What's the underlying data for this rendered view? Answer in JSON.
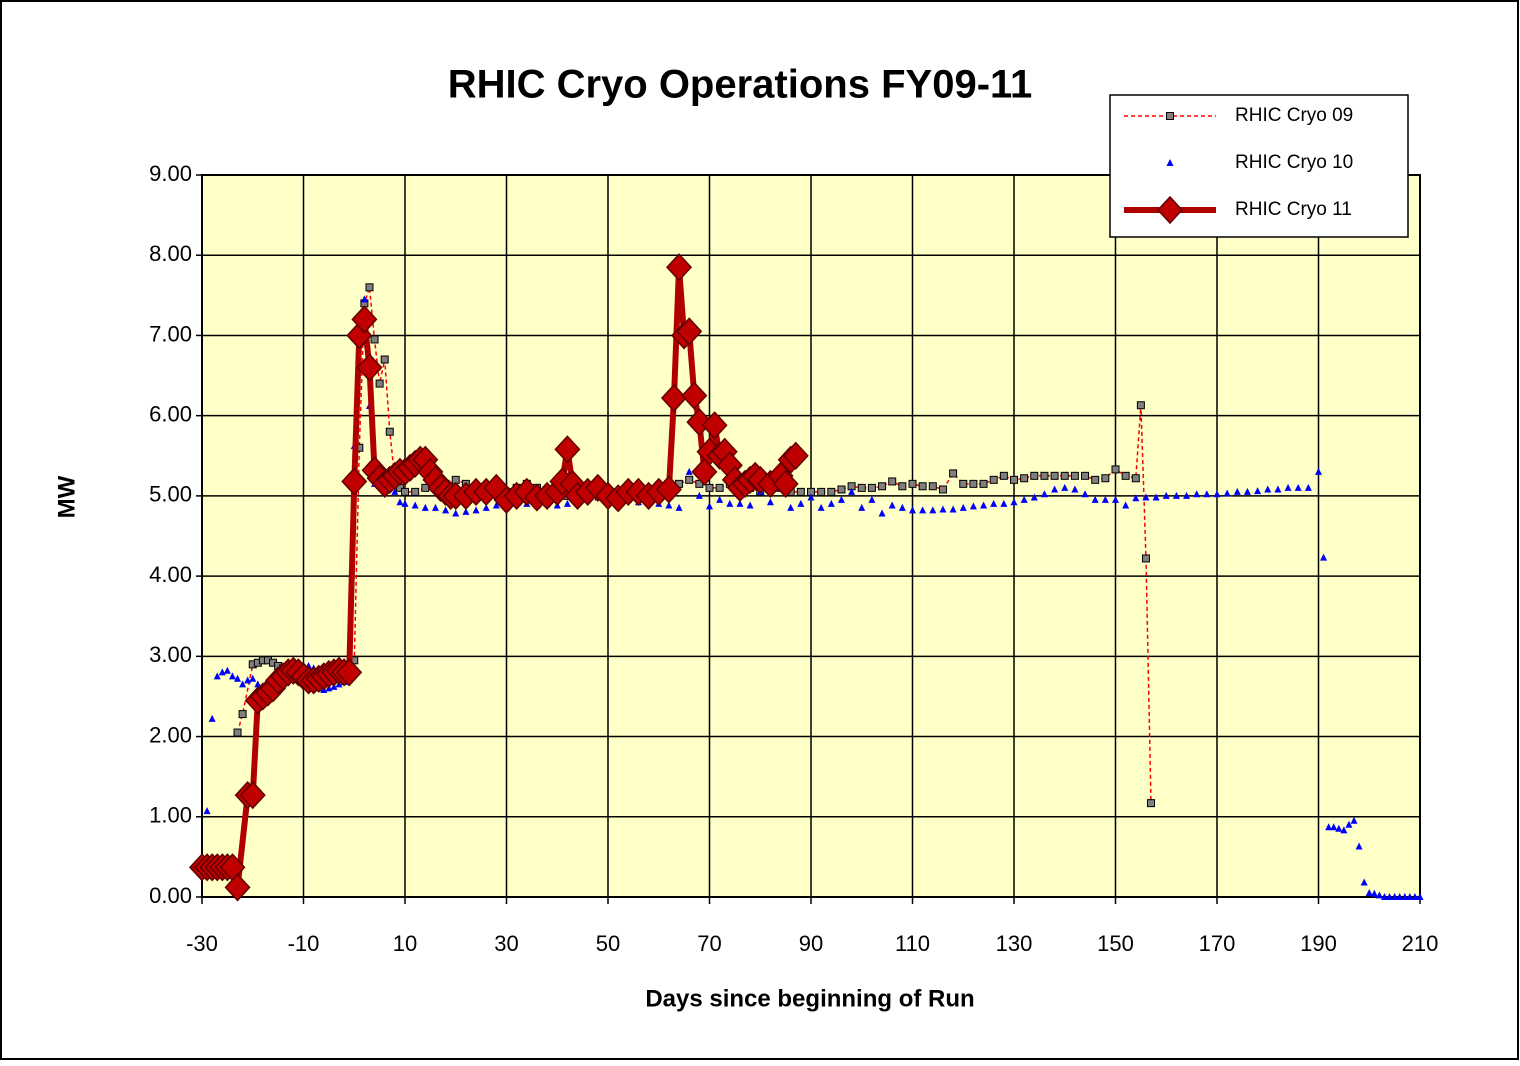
{
  "chart_data": {
    "type": "line",
    "title": "RHIC Cryo Operations FY09-11",
    "x_label": "Days since beginning of Run",
    "y_label": "MW",
    "xlim": [
      -30,
      210
    ],
    "xticks": [
      -30,
      -10,
      10,
      30,
      50,
      70,
      90,
      110,
      130,
      150,
      170,
      190,
      210
    ],
    "ylim": [
      0,
      9
    ],
    "yticks": [
      {
        "value": 0,
        "label": "0.00"
      },
      {
        "value": 1,
        "label": "1.00"
      },
      {
        "value": 2,
        "label": "2.00"
      },
      {
        "value": 3,
        "label": "3.00"
      },
      {
        "value": 4,
        "label": "4.00"
      },
      {
        "value": 5,
        "label": "5.00"
      },
      {
        "value": 6,
        "label": "6.00"
      },
      {
        "value": 7,
        "label": "7.00"
      },
      {
        "value": 8,
        "label": "8.00"
      },
      {
        "value": 9,
        "label": "9.00"
      }
    ],
    "grid": true,
    "legend": "top-right",
    "background": "#ffffc8",
    "series": [
      {
        "name": "RHIC Cryo 09",
        "color": "#ff0000",
        "marker": "square",
        "marker_color": "#808080",
        "line": "dashed",
        "x": [
          -23,
          -22,
          -20,
          -19,
          -18,
          -17,
          -16,
          -15,
          -14,
          -13,
          -12,
          -11,
          -10,
          -9,
          -8,
          -7,
          -6,
          -5,
          -4,
          -3,
          -2,
          -1,
          0,
          1,
          2,
          3,
          4,
          5,
          6,
          7,
          8,
          9,
          10,
          12,
          14,
          16,
          18,
          20,
          22,
          24,
          26,
          28,
          30,
          32,
          34,
          36,
          38,
          40,
          42,
          44,
          46,
          48,
          50,
          52,
          54,
          56,
          58,
          60,
          62,
          64,
          66,
          68,
          70,
          72,
          74,
          76,
          78,
          80,
          82,
          84,
          86,
          88,
          90,
          92,
          94,
          96,
          98,
          100,
          102,
          104,
          106,
          108,
          110,
          112,
          114,
          116,
          118,
          120,
          122,
          124,
          126,
          128,
          130,
          132,
          134,
          136,
          138,
          140,
          142,
          144,
          146,
          148,
          150,
          152,
          154,
          155,
          156,
          157
        ],
        "values": [
          2.05,
          2.28,
          2.9,
          2.92,
          2.95,
          2.95,
          2.92,
          2.88,
          2.85,
          2.82,
          2.8,
          2.8,
          2.78,
          2.75,
          2.75,
          2.72,
          2.7,
          2.7,
          2.72,
          2.75,
          2.8,
          2.85,
          2.95,
          5.6,
          7.4,
          7.6,
          6.95,
          6.4,
          6.7,
          5.8,
          5.2,
          5.1,
          5.05,
          5.05,
          5.1,
          5.15,
          5.15,
          5.2,
          5.15,
          5.1,
          5.1,
          5.05,
          5.05,
          5.1,
          5.15,
          5.1,
          5.05,
          5.05,
          5.0,
          5.05,
          5.1,
          5.1,
          5.05,
          5.05,
          5.1,
          5.1,
          5.05,
          5.1,
          5.1,
          5.15,
          5.2,
          5.15,
          5.1,
          5.1,
          5.15,
          5.1,
          5.1,
          5.05,
          5.1,
          5.1,
          5.05,
          5.05,
          5.05,
          5.05,
          5.05,
          5.08,
          5.12,
          5.1,
          5.1,
          5.12,
          5.18,
          5.12,
          5.15,
          5.12,
          5.12,
          5.08,
          5.28,
          5.15,
          5.15,
          5.15,
          5.2,
          5.25,
          5.2,
          5.22,
          5.25,
          5.25,
          5.25,
          5.25,
          5.25,
          5.25,
          5.2,
          5.22,
          5.33,
          5.25,
          5.22,
          6.13,
          4.22,
          1.17
        ]
      },
      {
        "name": "RHIC Cryo 10",
        "color": "#0000ff",
        "marker": "triangle",
        "line": "none",
        "x": [
          -29,
          -28,
          -27,
          -26,
          -25,
          -24,
          -23,
          -22,
          -21,
          -20,
          -19,
          -18,
          -17,
          -16,
          -15,
          -14,
          -13,
          -12,
          -11,
          -10,
          -9,
          -8,
          -7,
          -6,
          -5,
          -4,
          -3,
          -2,
          -1,
          0,
          1,
          2,
          3,
          4,
          5,
          6,
          7,
          8,
          9,
          10,
          12,
          14,
          16,
          18,
          20,
          22,
          24,
          26,
          28,
          30,
          32,
          34,
          36,
          38,
          40,
          42,
          44,
          46,
          48,
          50,
          52,
          54,
          56,
          58,
          60,
          62,
          64,
          66,
          68,
          70,
          72,
          74,
          76,
          78,
          80,
          82,
          84,
          86,
          88,
          90,
          92,
          94,
          96,
          98,
          100,
          102,
          104,
          106,
          108,
          110,
          112,
          114,
          116,
          118,
          120,
          122,
          124,
          126,
          128,
          130,
          132,
          134,
          136,
          138,
          140,
          142,
          144,
          146,
          148,
          150,
          152,
          154,
          156,
          158,
          160,
          162,
          164,
          166,
          168,
          170,
          172,
          174,
          176,
          178,
          180,
          182,
          184,
          186,
          188,
          190,
          191,
          192,
          193,
          194,
          195,
          196,
          197,
          198,
          199,
          200,
          201,
          202,
          203,
          204,
          205,
          206,
          207,
          208,
          209,
          210
        ],
        "values": [
          1.07,
          2.22,
          2.75,
          2.8,
          2.82,
          2.75,
          2.72,
          2.65,
          2.7,
          2.72,
          2.65,
          2.6,
          2.62,
          2.65,
          2.7,
          2.72,
          2.75,
          2.78,
          2.8,
          2.85,
          2.88,
          2.85,
          2.6,
          2.58,
          2.6,
          2.62,
          2.65,
          2.68,
          2.7,
          5.62,
          7.05,
          7.45,
          6.12,
          5.15,
          5.2,
          5.3,
          5.15,
          5.05,
          4.92,
          4.9,
          4.88,
          4.85,
          4.85,
          4.82,
          4.78,
          4.8,
          4.82,
          4.85,
          4.88,
          4.9,
          4.92,
          4.9,
          4.88,
          4.9,
          4.88,
          4.9,
          4.92,
          4.95,
          4.98,
          5.0,
          4.98,
          4.95,
          4.92,
          4.95,
          4.9,
          4.88,
          4.85,
          5.3,
          5.0,
          4.87,
          4.95,
          4.9,
          4.9,
          4.88,
          5.05,
          4.92,
          5.1,
          4.85,
          4.9,
          4.98,
          4.85,
          4.9,
          4.95,
          5.05,
          4.85,
          4.95,
          4.78,
          4.88,
          4.85,
          4.82,
          4.82,
          4.82,
          4.83,
          4.83,
          4.85,
          4.87,
          4.88,
          4.9,
          4.9,
          4.92,
          4.95,
          4.98,
          5.02,
          5.08,
          5.1,
          5.08,
          5.02,
          4.95,
          4.95,
          4.95,
          4.88,
          4.97,
          4.98,
          4.98,
          5.0,
          5.0,
          5.0,
          5.02,
          5.02,
          5.02,
          5.03,
          5.05,
          5.05,
          5.06,
          5.08,
          5.08,
          5.1,
          5.1,
          5.1,
          5.3,
          4.23,
          0.87,
          0.87,
          0.85,
          0.83,
          0.9,
          0.95,
          0.63,
          0.18,
          0.05,
          0.04,
          0.02,
          0,
          0,
          0,
          0,
          0,
          0,
          0,
          0
        ]
      },
      {
        "name": "RHIC Cryo 11",
        "color": "#b00000",
        "marker": "diamond",
        "marker_color": "#c00000",
        "line": "solid",
        "x": [
          -30,
          -29,
          -28,
          -27,
          -26,
          -25,
          -24,
          -23,
          -21,
          -20,
          -19,
          -18,
          -17,
          -16,
          -15,
          -14,
          -13,
          -12,
          -11,
          -10,
          -9,
          -8,
          -7,
          -6,
          -5,
          -4,
          -3,
          -2,
          -1,
          0,
          1,
          2,
          3,
          4,
          5,
          6,
          7,
          8,
          9,
          10,
          11,
          12,
          13,
          14,
          15,
          16,
          17,
          18,
          19,
          20,
          22,
          24,
          26,
          28,
          30,
          32,
          34,
          36,
          38,
          40,
          41,
          42,
          43,
          44,
          46,
          48,
          50,
          52,
          54,
          56,
          58,
          60,
          62,
          63,
          64,
          65,
          66,
          67,
          68,
          69,
          70,
          71,
          72,
          73,
          74,
          75,
          76,
          77,
          78,
          79,
          80,
          82,
          84,
          85,
          86,
          87
        ],
        "values": [
          0.37,
          0.37,
          0.37,
          0.37,
          0.37,
          0.37,
          0.37,
          0.12,
          1.27,
          1.27,
          2.45,
          2.5,
          2.55,
          2.6,
          2.7,
          2.75,
          2.8,
          2.82,
          2.8,
          2.75,
          2.7,
          2.7,
          2.72,
          2.75,
          2.78,
          2.8,
          2.82,
          2.8,
          2.8,
          5.18,
          7.0,
          7.2,
          6.6,
          5.32,
          5.22,
          5.15,
          5.2,
          5.25,
          5.3,
          5.3,
          5.35,
          5.4,
          5.45,
          5.45,
          5.3,
          5.2,
          5.1,
          5.05,
          5.0,
          5.0,
          5.0,
          5.05,
          5.05,
          5.1,
          4.95,
          5.0,
          5.05,
          4.98,
          5.0,
          5.05,
          5.18,
          5.58,
          5.15,
          5.0,
          5.05,
          5.1,
          5.0,
          4.97,
          5.05,
          5.05,
          5.0,
          5.05,
          5.08,
          6.22,
          7.85,
          7.0,
          7.05,
          6.25,
          5.92,
          5.3,
          5.55,
          5.88,
          5.5,
          5.55,
          5.38,
          5.2,
          5.1,
          5.15,
          5.2,
          5.25,
          5.2,
          5.15,
          5.25,
          5.15,
          5.45,
          5.5
        ]
      }
    ]
  }
}
